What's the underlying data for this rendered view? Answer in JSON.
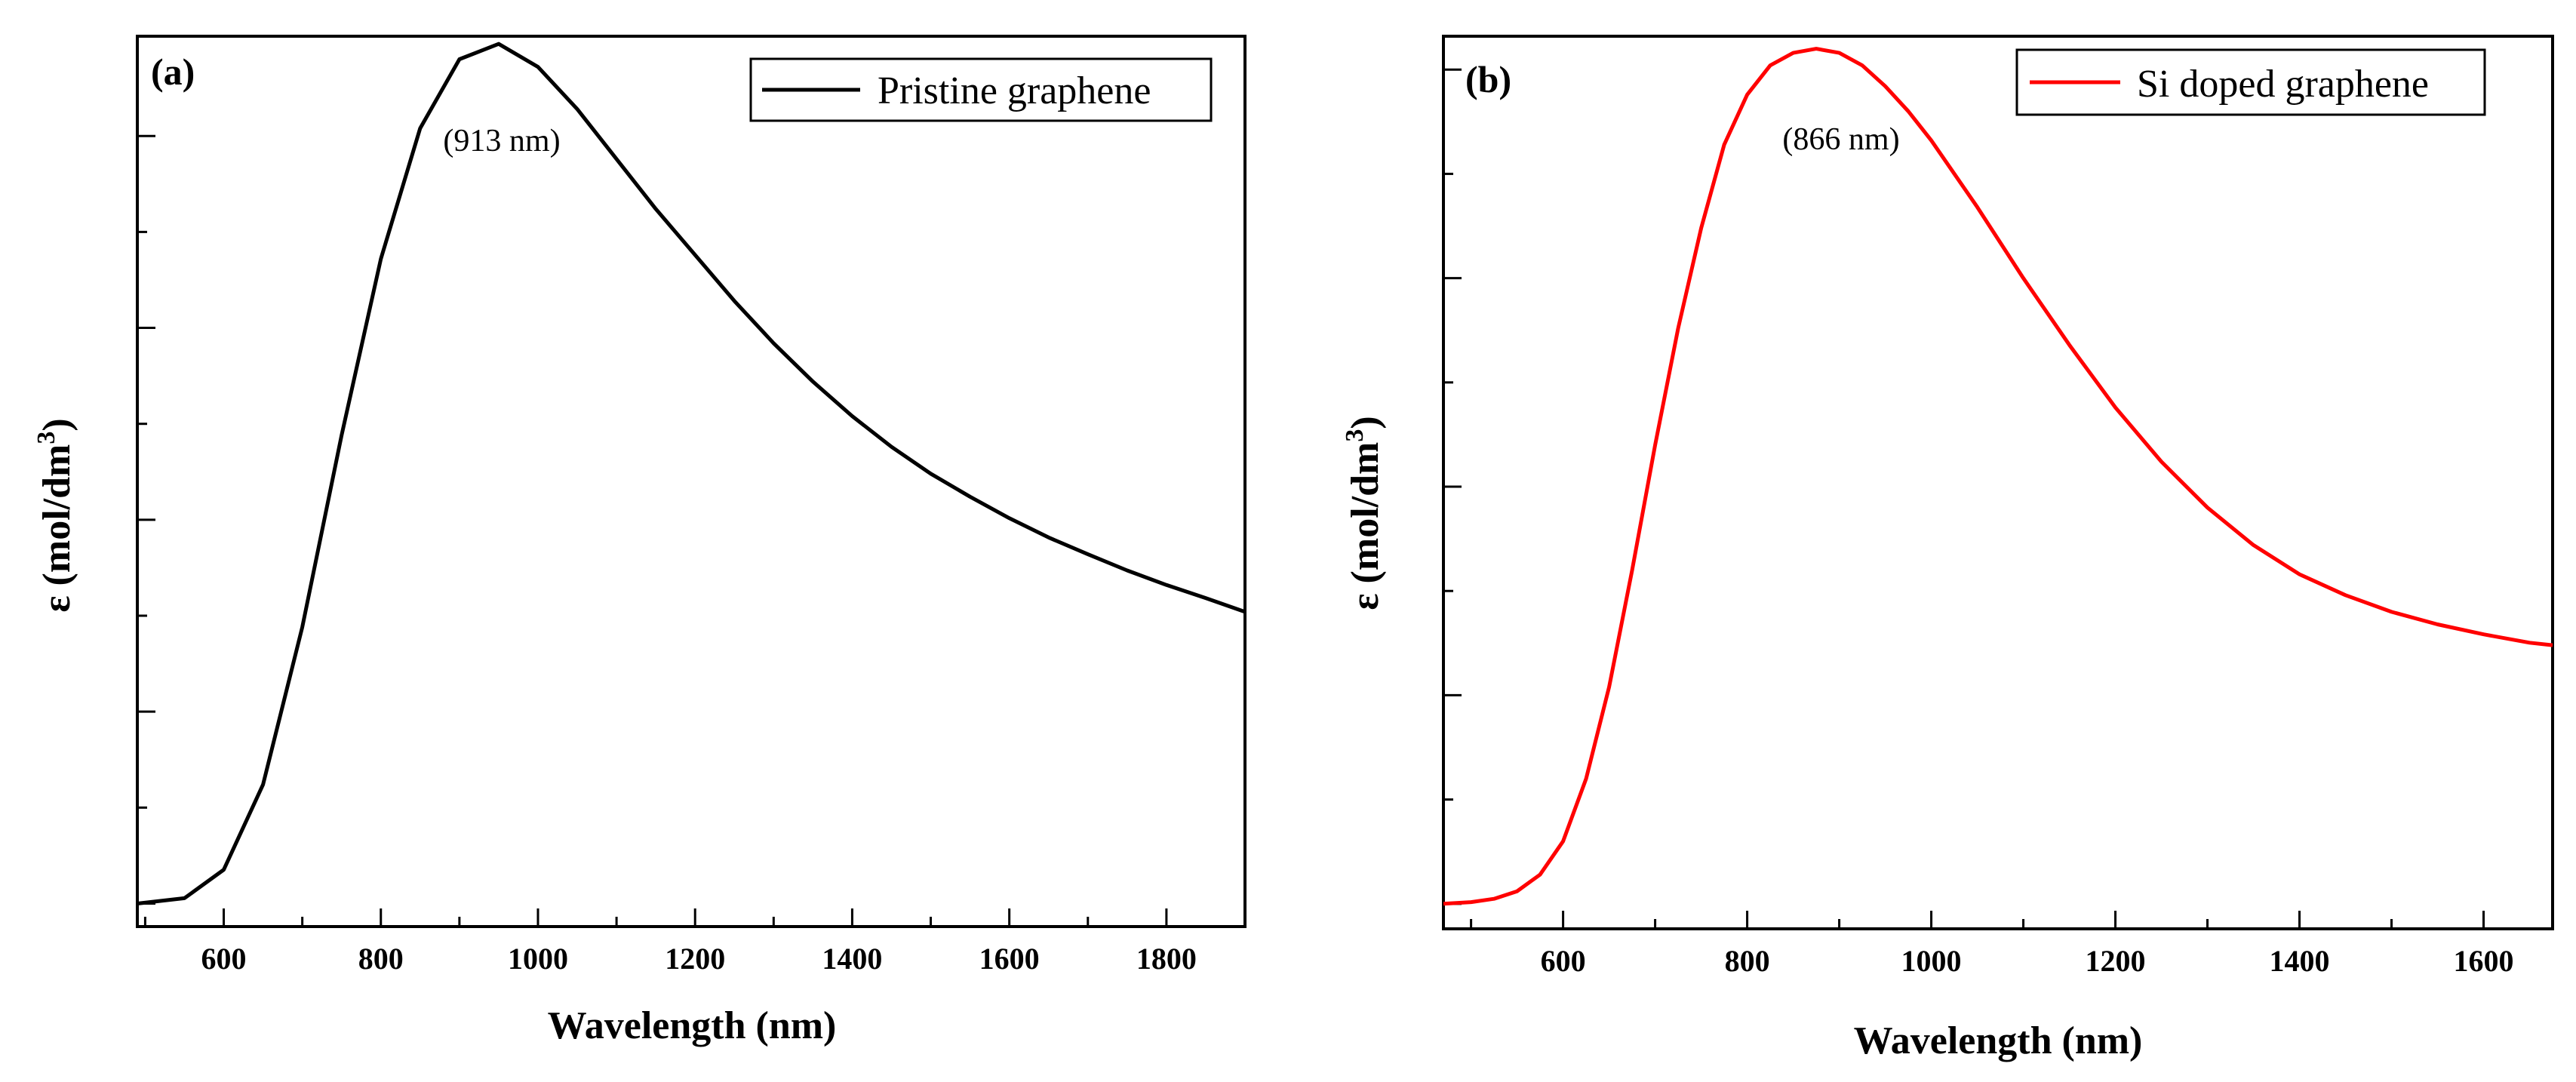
{
  "chart_data": [
    {
      "type": "line",
      "panel_label": "(a)",
      "xlabel": "Wavelength (nm)",
      "ylabel_main": "ε (mol/dm",
      "ylabel_sup": "3",
      "ylabel_close": ")",
      "xlim": [
        490,
        1900
      ],
      "ylim": [
        -0.03,
        1.13
      ],
      "x_ticks": [
        600,
        800,
        1000,
        1200,
        1400,
        1600,
        1800
      ],
      "x_tick_labels": [
        "600",
        "800",
        "1000",
        "1200",
        "1400",
        "1600",
        "1800"
      ],
      "y_major_ticks": [
        0,
        0.25,
        0.5,
        0.75,
        1.0
      ],
      "legend_position": "top-right",
      "annotation": {
        "text": "(913 nm)",
        "x": 950,
        "y": 0.99
      },
      "series": [
        {
          "name": "Pristine graphene",
          "color": "#000000",
          "x": [
            490,
            550,
            600,
            650,
            700,
            750,
            800,
            850,
            900,
            950,
            1000,
            1050,
            1100,
            1150,
            1200,
            1250,
            1300,
            1350,
            1400,
            1450,
            1500,
            1550,
            1600,
            1650,
            1700,
            1750,
            1800,
            1850,
            1900
          ],
          "y": [
            0.0,
            0.007,
            0.044,
            0.155,
            0.36,
            0.61,
            0.84,
            1.01,
            1.1,
            1.12,
            1.09,
            1.035,
            0.97,
            0.905,
            0.845,
            0.785,
            0.73,
            0.68,
            0.635,
            0.595,
            0.56,
            0.53,
            0.502,
            0.477,
            0.455,
            0.434,
            0.415,
            0.398,
            0.38
          ]
        }
      ]
    },
    {
      "type": "line",
      "panel_label": "(b)",
      "xlabel": "Wavelength (nm)",
      "ylabel_main": "ε (mol/dm",
      "ylabel_sup": "3",
      "ylabel_close": ")",
      "xlim": [
        470,
        1675
      ],
      "ylim": [
        -0.03,
        1.04
      ],
      "x_ticks": [
        600,
        800,
        1000,
        1200,
        1400,
        1600
      ],
      "x_tick_labels": [
        "600",
        "800",
        "1000",
        "1200",
        "1400",
        "1600"
      ],
      "y_major_ticks": [
        0,
        0.25,
        0.5,
        0.75,
        1.0
      ],
      "legend_position": "top-right",
      "annotation": {
        "text": "(866 nm)",
        "x": 870,
        "y": 0.92
      },
      "series": [
        {
          "name": "Si doped graphene",
          "color": "#ff0000",
          "x": [
            470,
            500,
            525,
            550,
            575,
            600,
            625,
            650,
            675,
            700,
            725,
            750,
            775,
            800,
            825,
            850,
            875,
            900,
            925,
            950,
            975,
            1000,
            1050,
            1100,
            1150,
            1200,
            1250,
            1300,
            1350,
            1400,
            1450,
            1500,
            1550,
            1600,
            1650,
            1675
          ],
          "y": [
            0.0,
            0.002,
            0.006,
            0.015,
            0.035,
            0.075,
            0.15,
            0.26,
            0.4,
            0.55,
            0.69,
            0.81,
            0.91,
            0.97,
            1.005,
            1.02,
            1.025,
            1.02,
            1.005,
            0.98,
            0.95,
            0.915,
            0.835,
            0.75,
            0.67,
            0.595,
            0.53,
            0.475,
            0.43,
            0.395,
            0.37,
            0.35,
            0.335,
            0.323,
            0.313,
            0.31
          ]
        }
      ]
    }
  ]
}
